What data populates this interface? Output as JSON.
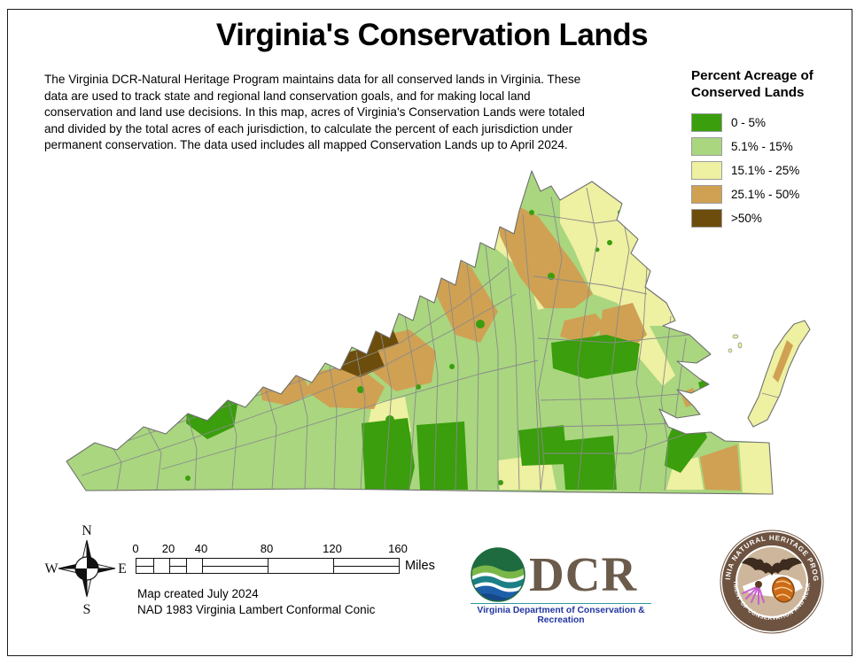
{
  "page": {
    "title": "Virginia's Conservation Lands"
  },
  "description": "The Virginia DCR-Natural Heritage Program maintains data for all conserved lands in Virginia.  These data are used to track state and regional land conservation goals, and for making local land conservation and land use decisions. In this map, acres of Virginia's Conservation Lands were totaled and divided by the total acres of each jurisdiction, to calculate the percent of each jurisdiction under permanent conservation. The data used includes all mapped Conservation Lands up to April 2024.",
  "legend": {
    "title": "Percent Acreage of Conserved Lands",
    "items": [
      {
        "label": "0 - 5%",
        "class": "c1",
        "color": "#3a9e0d"
      },
      {
        "label": "5.1% - 15%",
        "class": "c2",
        "color": "#a9d67f"
      },
      {
        "label": "15.1% - 25%",
        "class": "c3",
        "color": "#eef0a2"
      },
      {
        "label": "25.1% - 50%",
        "class": "c4",
        "color": "#d0a153"
      },
      {
        "label": ">50%",
        "class": "c5",
        "color": "#6d4d0b"
      }
    ]
  },
  "map": {
    "palette": {
      "c1": "#3a9e0d",
      "c2": "#a9d67f",
      "c3": "#eef0a2",
      "c4": "#d0a153",
      "c5": "#6d4d0b",
      "border": "#8a8a8a",
      "outline": "#6e6e6e",
      "water": "#ffffff"
    }
  },
  "compass": {
    "n": "N",
    "s": "S",
    "e": "E",
    "w": "W"
  },
  "scale_bar": {
    "ticks": [
      0,
      20,
      40,
      80,
      120,
      160
    ],
    "dividers": [
      10,
      20,
      30,
      40,
      80,
      120
    ],
    "half_segments": [
      [
        0,
        10
      ],
      [
        20,
        30
      ],
      [
        40,
        80
      ],
      [
        120,
        160
      ]
    ],
    "unit": "Miles"
  },
  "footer": {
    "created": "Map created July 2024",
    "projection": "NAD 1983 Virginia Lambert Conformal Conic"
  },
  "logos": {
    "dcr": {
      "acronym": "DCR",
      "caption": "Virginia Department of Conservation & Recreation"
    },
    "heritage": {
      "top": "VIRGINIA NATURAL HERITAGE PROGRAM",
      "bottom": "DEPARTMENT OF CONSERVATION AND RECREATION"
    }
  }
}
